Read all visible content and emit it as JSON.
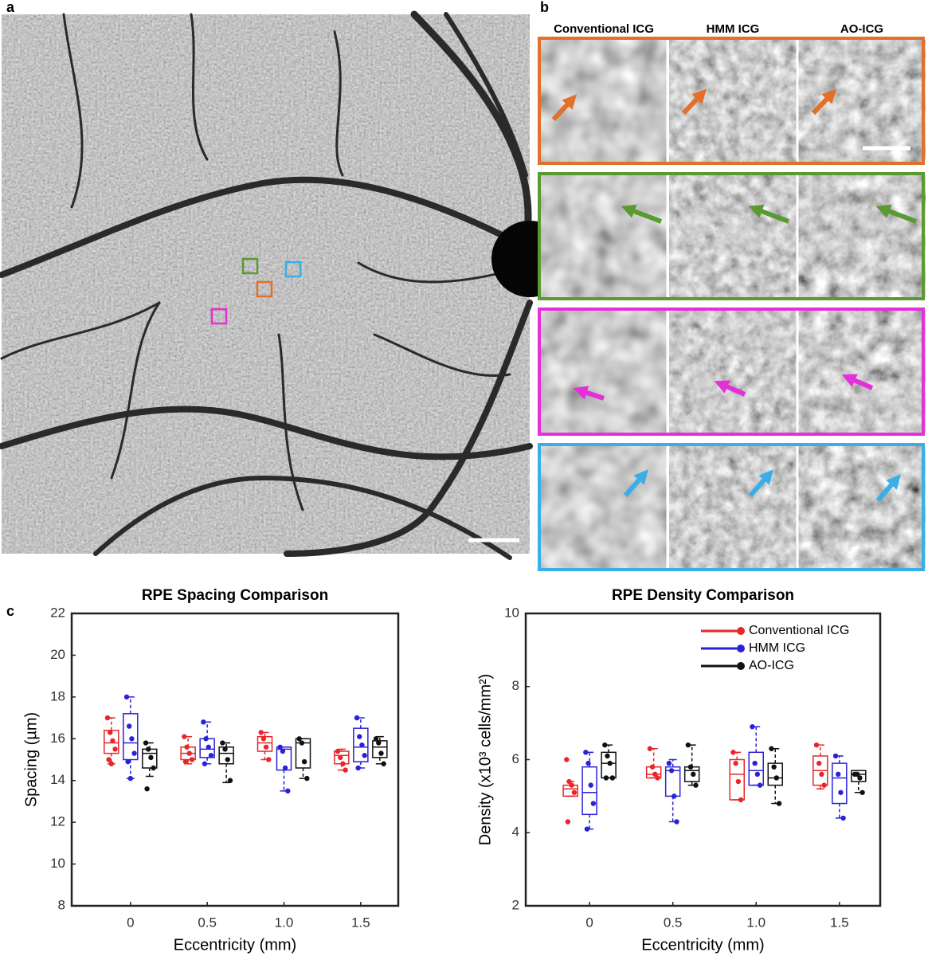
{
  "panels": {
    "a": "a",
    "b": "b",
    "c": "c"
  },
  "columns": [
    "Conventional ICG",
    "HMM ICG",
    "AO-ICG"
  ],
  "chart_data": [
    {
      "type": "box",
      "title": "RPE Spacing Comparison",
      "xlabel": "Eccentricity (mm)",
      "ylabel": "Spacing (µm)",
      "categories": [
        "0",
        "0.5",
        "1.0",
        "1.5"
      ],
      "ylim": [
        8,
        22
      ],
      "yticks": [
        8,
        10,
        12,
        14,
        16,
        18,
        20,
        22
      ],
      "series": [
        {
          "color": "#e8262a",
          "boxes": [
            {
              "min": 14.8,
              "q1": 15.3,
              "median": 15.8,
              "q3": 16.4,
              "max": 17.0,
              "points": [
                17.0,
                16.3,
                15.9,
                15.5,
                15.0,
                14.8
              ]
            },
            {
              "min": 14.8,
              "q1": 15.0,
              "median": 15.3,
              "q3": 15.6,
              "max": 16.1,
              "points": [
                16.1,
                15.6,
                15.3,
                15.0,
                14.9
              ]
            },
            {
              "min": 15.0,
              "q1": 15.4,
              "median": 15.8,
              "q3": 16.1,
              "max": 16.3,
              "points": [
                16.3,
                16.0,
                15.6,
                15.0
              ]
            },
            {
              "min": 14.5,
              "q1": 14.8,
              "median": 15.2,
              "q3": 15.4,
              "max": 15.5,
              "points": [
                15.4,
                15.1,
                14.8,
                14.5
              ]
            }
          ]
        },
        {
          "color": "#2a22d6",
          "boxes": [
            {
              "min": 14.1,
              "q1": 15.0,
              "median": 15.8,
              "q3": 17.2,
              "max": 18.0,
              "points": [
                18.0,
                16.6,
                16.0,
                15.3,
                14.9,
                14.1
              ]
            },
            {
              "min": 14.8,
              "q1": 15.1,
              "median": 15.5,
              "q3": 16.0,
              "max": 16.8,
              "points": [
                16.8,
                16.0,
                15.6,
                15.2,
                14.8
              ]
            },
            {
              "min": 13.5,
              "q1": 14.5,
              "median": 15.5,
              "q3": 15.6,
              "max": 15.6,
              "points": [
                15.6,
                15.4,
                14.6,
                13.5
              ]
            },
            {
              "min": 14.6,
              "q1": 14.9,
              "median": 15.6,
              "q3": 16.5,
              "max": 17.0,
              "points": [
                17.0,
                16.1,
                15.7,
                15.2,
                14.6
              ]
            }
          ]
        },
        {
          "color": "#111111",
          "boxes": [
            {
              "min": 14.2,
              "q1": 14.6,
              "median": 15.3,
              "q3": 15.5,
              "max": 15.8,
              "points": [
                15.8,
                15.5,
                15.1,
                14.6,
                13.6
              ]
            },
            {
              "min": 13.9,
              "q1": 14.8,
              "median": 15.3,
              "q3": 15.6,
              "max": 15.8,
              "points": [
                15.8,
                15.5,
                15.0,
                14.0
              ]
            },
            {
              "min": 14.1,
              "q1": 14.6,
              "median": 15.8,
              "q3": 16.0,
              "max": 16.0,
              "points": [
                16.0,
                15.8,
                14.9,
                14.1
              ]
            },
            {
              "min": 14.8,
              "q1": 15.1,
              "median": 15.6,
              "q3": 15.9,
              "max": 16.1,
              "points": [
                16.0,
                15.8,
                15.3,
                14.8
              ]
            }
          ]
        }
      ]
    },
    {
      "type": "box",
      "title": "RPE Density Comparison",
      "xlabel": "Eccentricity (mm)",
      "ylabel": "Density (x10³ cells/mm²)",
      "categories": [
        "0",
        "0.5",
        "1.0",
        "1.5"
      ],
      "ylim": [
        2,
        10
      ],
      "yticks": [
        2,
        4,
        6,
        8,
        10
      ],
      "legend": "upper right",
      "series": [
        {
          "name": "Conventional ICG",
          "color": "#e8262a",
          "boxes": [
            {
              "min": 5.0,
              "q1": 5.0,
              "median": 5.2,
              "q3": 5.3,
              "max": 5.4,
              "points": [
                6.0,
                5.4,
                5.3,
                5.1,
                4.3
              ]
            },
            {
              "min": 5.5,
              "q1": 5.5,
              "median": 5.6,
              "q3": 5.8,
              "max": 6.3,
              "points": [
                6.3,
                5.8,
                5.6,
                5.5
              ]
            },
            {
              "min": 4.9,
              "q1": 4.9,
              "median": 5.6,
              "q3": 6.0,
              "max": 6.2,
              "points": [
                6.2,
                5.9,
                5.4,
                4.9
              ]
            },
            {
              "min": 5.2,
              "q1": 5.3,
              "median": 5.7,
              "q3": 6.1,
              "max": 6.4,
              "points": [
                6.4,
                5.9,
                5.6,
                5.3
              ]
            }
          ]
        },
        {
          "name": "HMM ICG",
          "color": "#2a22d6",
          "boxes": [
            {
              "min": 4.1,
              "q1": 4.5,
              "median": 5.1,
              "q3": 5.8,
              "max": 6.2,
              "points": [
                6.2,
                5.9,
                5.3,
                4.8,
                4.1
              ]
            },
            {
              "min": 4.3,
              "q1": 5.0,
              "median": 5.7,
              "q3": 5.8,
              "max": 6.0,
              "points": [
                5.9,
                5.7,
                5.0,
                4.3
              ]
            },
            {
              "min": 5.3,
              "q1": 5.3,
              "median": 5.7,
              "q3": 6.2,
              "max": 6.9,
              "points": [
                6.9,
                5.9,
                5.6,
                5.3
              ]
            },
            {
              "min": 4.4,
              "q1": 4.8,
              "median": 5.5,
              "q3": 5.9,
              "max": 6.1,
              "points": [
                6.1,
                5.6,
                5.1,
                4.4
              ]
            }
          ]
        },
        {
          "name": "AO-ICG",
          "color": "#111111",
          "boxes": [
            {
              "min": 5.5,
              "q1": 5.5,
              "median": 5.9,
              "q3": 6.2,
              "max": 6.4,
              "points": [
                6.4,
                6.1,
                5.9,
                5.5,
                5.5
              ]
            },
            {
              "min": 5.3,
              "q1": 5.4,
              "median": 5.7,
              "q3": 5.8,
              "max": 6.4,
              "points": [
                6.4,
                5.8,
                5.6,
                5.3
              ]
            },
            {
              "min": 4.8,
              "q1": 5.3,
              "median": 5.5,
              "q3": 5.9,
              "max": 6.3,
              "points": [
                6.3,
                5.8,
                5.5,
                4.8
              ]
            },
            {
              "min": 5.1,
              "q1": 5.4,
              "median": 5.6,
              "q3": 5.7,
              "max": 5.7,
              "points": [
                5.6,
                5.6,
                5.5,
                5.1
              ]
            }
          ]
        }
      ]
    }
  ]
}
